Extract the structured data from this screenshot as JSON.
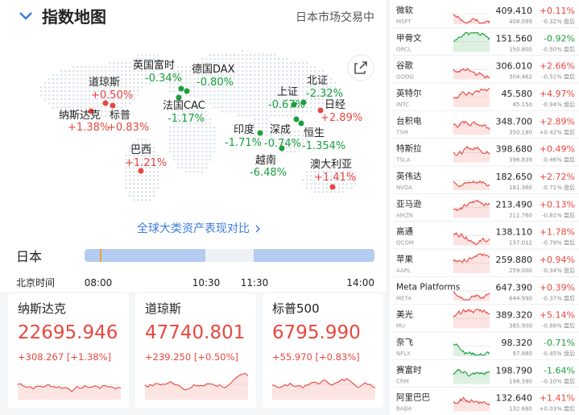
{
  "header": {
    "title": "指数地图",
    "status": "日本市场交易中"
  },
  "map": {
    "markers": [
      {
        "name": "英国富时",
        "change": "-0.34%"
      },
      {
        "name": "德国DAX",
        "change": "-0.80%"
      },
      {
        "name": "道琼斯",
        "change": "+0.50%"
      },
      {
        "name": "纳斯达克",
        "change": "+1.38%"
      },
      {
        "name": "标普",
        "change": "+0.83%"
      },
      {
        "name": "法国CAC",
        "change": "-1.17%"
      },
      {
        "name": "上证",
        "change": "-0.67%"
      },
      {
        "name": "北证",
        "change": "-2.32%"
      },
      {
        "name": "日经",
        "change": "+2.89%"
      },
      {
        "name": "印度",
        "change": "-1.71%"
      },
      {
        "name": "深成",
        "change": "-0.74%"
      },
      {
        "name": "恒生",
        "change": "-1.354%"
      },
      {
        "name": "巴西",
        "change": "+1.21%"
      },
      {
        "name": "越南",
        "change": "-6.48%"
      },
      {
        "name": "澳大利亚",
        "change": "+1.41%"
      }
    ]
  },
  "link": "全球大类资产表现对比",
  "timeline": {
    "market": "日本",
    "label": "北京时间",
    "times": [
      "08:00",
      "10:30",
      "11:30",
      "14:00"
    ]
  },
  "cards": [
    {
      "name": "纳斯达克",
      "value": "22695.946",
      "change": "+308.267 [+1.38%]"
    },
    {
      "name": "道琼斯",
      "value": "47740.801",
      "change": "+239.250 [+0.50%]"
    },
    {
      "name": "标普500",
      "value": "6795.990",
      "change": "+55.970 [+0.83%]"
    }
  ],
  "stocks": [
    {
      "name": "微软",
      "ticker": "MSFT",
      "price": "409.410",
      "after_price": "408.099",
      "change": "+0.11%",
      "after_change": "-0.32% 盘后"
    },
    {
      "name": "甲骨文",
      "ticker": "ORCL",
      "price": "151.560",
      "after_price": "150.800",
      "change": "-0.92%",
      "after_change": "-0.50% 盘后"
    },
    {
      "name": "谷歌",
      "ticker": "GOOG",
      "price": "306.010",
      "after_price": "304.462",
      "change": "+2.66%",
      "after_change": "-0.51% 盘后"
    },
    {
      "name": "英特尔",
      "ticker": "INTC",
      "price": "45.580",
      "after_price": "45.150",
      "change": "+4.97%",
      "after_change": "-0.94% 盘后"
    },
    {
      "name": "台积电",
      "ticker": "TSM",
      "price": "348.700",
      "after_price": "350.180",
      "change": "+2.89%",
      "after_change": "+0.42% 盘后"
    },
    {
      "name": "特斯拉",
      "ticker": "TSLA",
      "price": "398.680",
      "after_price": "396.839",
      "change": "+0.49%",
      "after_change": "-0.46% 盘后"
    },
    {
      "name": "英伟达",
      "ticker": "NVDA",
      "price": "182.650",
      "after_price": "181.360",
      "change": "+2.72%",
      "after_change": "-0.71% 盘后"
    },
    {
      "name": "亚马逊",
      "ticker": "AMZN",
      "price": "213.490",
      "after_price": "211.760",
      "change": "+0.13%",
      "after_change": "-0.81% 盘后"
    },
    {
      "name": "高通",
      "ticker": "QCOM",
      "price": "138.110",
      "after_price": "137.012",
      "change": "+1.78%",
      "after_change": "-0.79% 盘后"
    },
    {
      "name": "苹果",
      "ticker": "AAPL",
      "price": "259.880",
      "after_price": "259.000",
      "change": "+0.94%",
      "after_change": "-0.34% 盘后"
    },
    {
      "name": "Meta Platforms",
      "ticker": "META",
      "price": "647.390",
      "after_price": "644.990",
      "change": "+0.39%",
      "after_change": "-0.37% 盘后"
    },
    {
      "name": "美光",
      "ticker": "MU",
      "price": "389.320",
      "after_price": "385.900",
      "change": "+5.14%",
      "after_change": "-0.88% 盘后"
    },
    {
      "name": "奈飞",
      "ticker": "NFLX",
      "price": "98.320",
      "after_price": "97.880",
      "change": "-0.71%",
      "after_change": "-0.45% 盘后"
    },
    {
      "name": "赛富时",
      "ticker": "CRM",
      "price": "198.790",
      "after_price": "198.590",
      "change": "-1.64%",
      "after_change": "-0.10% 盘后"
    },
    {
      "name": "阿里巴巴",
      "ticker": "BABA",
      "price": "132.640",
      "after_price": "132.680",
      "change": "+1.41%",
      "after_change": "+0.03% 盘后"
    }
  ]
}
